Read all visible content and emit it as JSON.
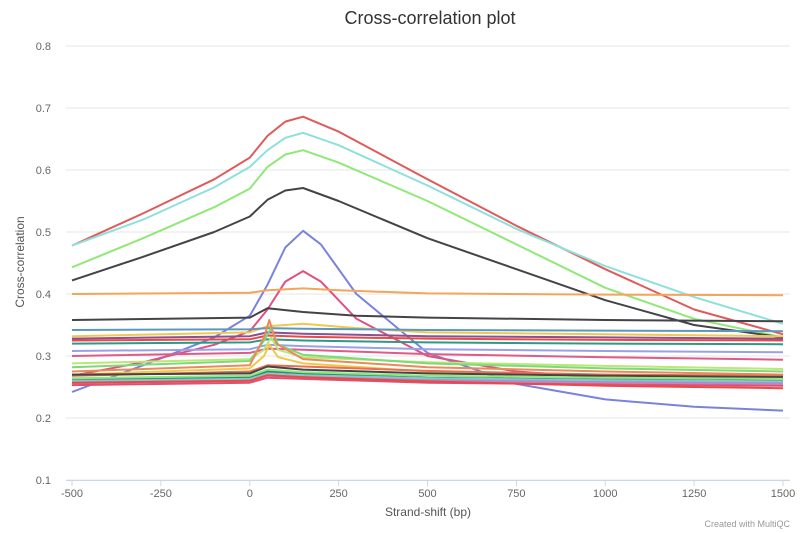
{
  "chart_data": {
    "type": "line",
    "title": "Cross-correlation plot",
    "xlabel": "Strand-shift (bp)",
    "ylabel": "Cross-correlation",
    "xlim": [
      -500,
      1500
    ],
    "ylim": [
      0.1,
      0.8
    ],
    "x_ticks": [
      "-500",
      "-250",
      "0",
      "250",
      "500",
      "750",
      "1000",
      "1250",
      "1500"
    ],
    "y_ticks": [
      "0.1",
      "0.2",
      "0.3",
      "0.4",
      "0.5",
      "0.6",
      "0.7",
      "0.8"
    ],
    "grid": true,
    "legend": "none",
    "series": [
      {
        "color": "#e05a5a",
        "points": [
          [
            -500,
            0.478
          ],
          [
            -300,
            0.53
          ],
          [
            -100,
            0.585
          ],
          [
            0,
            0.62
          ],
          [
            50,
            0.655
          ],
          [
            100,
            0.678
          ],
          [
            150,
            0.686
          ],
          [
            250,
            0.662
          ],
          [
            500,
            0.585
          ],
          [
            750,
            0.51
          ],
          [
            1000,
            0.44
          ],
          [
            1250,
            0.375
          ],
          [
            1500,
            0.335
          ]
        ]
      },
      {
        "color": "#8ee0dc",
        "points": [
          [
            -500,
            0.478
          ],
          [
            -300,
            0.52
          ],
          [
            -100,
            0.572
          ],
          [
            0,
            0.605
          ],
          [
            50,
            0.632
          ],
          [
            100,
            0.652
          ],
          [
            150,
            0.66
          ],
          [
            250,
            0.64
          ],
          [
            500,
            0.575
          ],
          [
            750,
            0.505
          ],
          [
            1000,
            0.445
          ],
          [
            1250,
            0.395
          ],
          [
            1500,
            0.352
          ]
        ]
      },
      {
        "color": "#90e878",
        "points": [
          [
            -500,
            0.443
          ],
          [
            -300,
            0.49
          ],
          [
            -100,
            0.54
          ],
          [
            0,
            0.57
          ],
          [
            50,
            0.605
          ],
          [
            100,
            0.625
          ],
          [
            150,
            0.632
          ],
          [
            250,
            0.612
          ],
          [
            500,
            0.55
          ],
          [
            750,
            0.48
          ],
          [
            1000,
            0.41
          ],
          [
            1250,
            0.36
          ],
          [
            1500,
            0.33
          ]
        ]
      },
      {
        "color": "#434348",
        "points": [
          [
            -500,
            0.422
          ],
          [
            -300,
            0.46
          ],
          [
            -100,
            0.5
          ],
          [
            0,
            0.525
          ],
          [
            50,
            0.552
          ],
          [
            100,
            0.567
          ],
          [
            150,
            0.571
          ],
          [
            250,
            0.55
          ],
          [
            500,
            0.49
          ],
          [
            750,
            0.44
          ],
          [
            1000,
            0.39
          ],
          [
            1250,
            0.35
          ],
          [
            1500,
            0.33
          ]
        ]
      },
      {
        "color": "#7a82e0",
        "points": [
          [
            -500,
            0.242
          ],
          [
            -300,
            0.285
          ],
          [
            -100,
            0.33
          ],
          [
            0,
            0.365
          ],
          [
            50,
            0.415
          ],
          [
            100,
            0.475
          ],
          [
            150,
            0.502
          ],
          [
            200,
            0.48
          ],
          [
            300,
            0.4
          ],
          [
            500,
            0.305
          ],
          [
            750,
            0.255
          ],
          [
            1000,
            0.23
          ],
          [
            1250,
            0.218
          ],
          [
            1500,
            0.212
          ]
        ]
      },
      {
        "color": "#e05080",
        "points": [
          [
            -500,
            0.268
          ],
          [
            -300,
            0.29
          ],
          [
            -100,
            0.318
          ],
          [
            0,
            0.34
          ],
          [
            50,
            0.375
          ],
          [
            100,
            0.42
          ],
          [
            150,
            0.437
          ],
          [
            200,
            0.42
          ],
          [
            300,
            0.36
          ],
          [
            500,
            0.3
          ],
          [
            750,
            0.275
          ],
          [
            1000,
            0.265
          ],
          [
            1250,
            0.26
          ],
          [
            1500,
            0.258
          ]
        ]
      },
      {
        "color": "#f4a55a",
        "points": [
          [
            -500,
            0.4
          ],
          [
            0,
            0.402
          ],
          [
            50,
            0.406
          ],
          [
            150,
            0.409
          ],
          [
            250,
            0.406
          ],
          [
            500,
            0.401
          ],
          [
            1000,
            0.399
          ],
          [
            1500,
            0.398
          ]
        ]
      },
      {
        "color": "#434348",
        "points": [
          [
            -500,
            0.358
          ],
          [
            0,
            0.362
          ],
          [
            50,
            0.377
          ],
          [
            150,
            0.371
          ],
          [
            300,
            0.365
          ],
          [
            500,
            0.362
          ],
          [
            1000,
            0.358
          ],
          [
            1500,
            0.356
          ]
        ]
      },
      {
        "color": "#f0c850",
        "points": [
          [
            -500,
            0.332
          ],
          [
            0,
            0.338
          ],
          [
            50,
            0.348
          ],
          [
            150,
            0.352
          ],
          [
            300,
            0.345
          ],
          [
            500,
            0.338
          ],
          [
            1000,
            0.335
          ],
          [
            1500,
            0.332
          ]
        ]
      },
      {
        "color": "#5a98c0",
        "points": [
          [
            -500,
            0.342
          ],
          [
            0,
            0.343
          ],
          [
            50,
            0.345
          ],
          [
            150,
            0.344
          ],
          [
            500,
            0.342
          ],
          [
            1000,
            0.341
          ],
          [
            1500,
            0.34
          ]
        ]
      },
      {
        "color": "#8a5090",
        "points": [
          [
            -500,
            0.328
          ],
          [
            0,
            0.332
          ],
          [
            50,
            0.338
          ],
          [
            150,
            0.336
          ],
          [
            500,
            0.332
          ],
          [
            1000,
            0.33
          ],
          [
            1500,
            0.328
          ]
        ]
      },
      {
        "color": "#e84a4a",
        "points": [
          [
            -500,
            0.325
          ],
          [
            0,
            0.327
          ],
          [
            50,
            0.333
          ],
          [
            150,
            0.331
          ],
          [
            500,
            0.328
          ],
          [
            1000,
            0.326
          ],
          [
            1500,
            0.325
          ]
        ]
      },
      {
        "color": "#2a9a8a",
        "points": [
          [
            -500,
            0.32
          ],
          [
            0,
            0.322
          ],
          [
            50,
            0.327
          ],
          [
            150,
            0.325
          ],
          [
            500,
            0.322
          ],
          [
            1000,
            0.32
          ],
          [
            1500,
            0.319
          ]
        ]
      },
      {
        "color": "#e05a88",
        "points": [
          [
            -500,
            0.3
          ],
          [
            0,
            0.305
          ],
          [
            50,
            0.312
          ],
          [
            150,
            0.31
          ],
          [
            500,
            0.303
          ],
          [
            1000,
            0.298
          ],
          [
            1500,
            0.294
          ]
        ]
      },
      {
        "color": "#9aa0e8",
        "points": [
          [
            -500,
            0.308
          ],
          [
            0,
            0.311
          ],
          [
            50,
            0.318
          ],
          [
            150,
            0.316
          ],
          [
            500,
            0.311
          ],
          [
            1000,
            0.308
          ],
          [
            1500,
            0.306
          ]
        ]
      },
      {
        "color": "#b8e878",
        "points": [
          [
            -500,
            0.288
          ],
          [
            0,
            0.295
          ],
          [
            40,
            0.31
          ],
          [
            60,
            0.33
          ],
          [
            80,
            0.31
          ],
          [
            150,
            0.298
          ],
          [
            500,
            0.29
          ],
          [
            1000,
            0.284
          ],
          [
            1500,
            0.279
          ]
        ]
      },
      {
        "color": "#80d878",
        "points": [
          [
            -500,
            0.282
          ],
          [
            0,
            0.292
          ],
          [
            40,
            0.325
          ],
          [
            60,
            0.345
          ],
          [
            80,
            0.318
          ],
          [
            150,
            0.302
          ],
          [
            500,
            0.288
          ],
          [
            1000,
            0.28
          ],
          [
            1500,
            0.275
          ]
        ]
      },
      {
        "color": "#e88a5a",
        "points": [
          [
            -500,
            0.275
          ],
          [
            0,
            0.285
          ],
          [
            40,
            0.33
          ],
          [
            55,
            0.358
          ],
          [
            75,
            0.32
          ],
          [
            150,
            0.295
          ],
          [
            500,
            0.282
          ],
          [
            1000,
            0.275
          ],
          [
            1500,
            0.27
          ]
        ]
      },
      {
        "color": "#f0c848",
        "points": [
          [
            -500,
            0.27
          ],
          [
            0,
            0.28
          ],
          [
            40,
            0.3
          ],
          [
            55,
            0.318
          ],
          [
            80,
            0.298
          ],
          [
            150,
            0.288
          ],
          [
            500,
            0.275
          ],
          [
            1000,
            0.27
          ],
          [
            1500,
            0.265
          ]
        ]
      },
      {
        "color": "#e87050",
        "points": [
          [
            -500,
            0.268
          ],
          [
            0,
            0.275
          ],
          [
            50,
            0.285
          ],
          [
            150,
            0.283
          ],
          [
            500,
            0.276
          ],
          [
            1000,
            0.27
          ],
          [
            1500,
            0.268
          ]
        ]
      },
      {
        "color": "#434348",
        "points": [
          [
            -500,
            0.27
          ],
          [
            0,
            0.272
          ],
          [
            50,
            0.283
          ],
          [
            150,
            0.278
          ],
          [
            500,
            0.272
          ],
          [
            1000,
            0.268
          ],
          [
            1500,
            0.266
          ]
        ]
      },
      {
        "color": "#2a8a7a",
        "points": [
          [
            -500,
            0.262
          ],
          [
            0,
            0.266
          ],
          [
            50,
            0.275
          ],
          [
            150,
            0.272
          ],
          [
            500,
            0.265
          ],
          [
            1000,
            0.262
          ],
          [
            1500,
            0.26
          ]
        ]
      },
      {
        "color": "#5ab0d8",
        "points": [
          [
            -500,
            0.258
          ],
          [
            0,
            0.262
          ],
          [
            50,
            0.27
          ],
          [
            150,
            0.268
          ],
          [
            500,
            0.262
          ],
          [
            1000,
            0.259
          ],
          [
            1500,
            0.257
          ]
        ]
      },
      {
        "color": "#c880c8",
        "points": [
          [
            -500,
            0.256
          ],
          [
            0,
            0.26
          ],
          [
            50,
            0.268
          ],
          [
            150,
            0.266
          ],
          [
            500,
            0.26
          ],
          [
            1000,
            0.257
          ],
          [
            1500,
            0.255
          ]
        ]
      },
      {
        "color": "#e05070",
        "points": [
          [
            -500,
            0.253
          ],
          [
            0,
            0.257
          ],
          [
            50,
            0.265
          ],
          [
            150,
            0.263
          ],
          [
            500,
            0.257
          ],
          [
            1000,
            0.254
          ],
          [
            1500,
            0.252
          ]
        ]
      },
      {
        "color": "#90c0c8",
        "points": [
          [
            -500,
            0.26
          ],
          [
            0,
            0.263
          ],
          [
            50,
            0.272
          ],
          [
            150,
            0.269
          ],
          [
            500,
            0.264
          ],
          [
            1000,
            0.261
          ],
          [
            1500,
            0.259
          ]
        ]
      },
      {
        "color": "#90e878",
        "points": [
          [
            -500,
            0.264
          ],
          [
            0,
            0.268
          ],
          [
            50,
            0.278
          ],
          [
            150,
            0.274
          ],
          [
            500,
            0.268
          ],
          [
            1000,
            0.265
          ],
          [
            1500,
            0.263
          ]
        ]
      },
      {
        "color": "#e84a4a",
        "points": [
          [
            -500,
            0.257
          ],
          [
            0,
            0.26
          ],
          [
            50,
            0.269
          ],
          [
            150,
            0.266
          ],
          [
            500,
            0.259
          ],
          [
            1000,
            0.252
          ],
          [
            1500,
            0.248
          ]
        ]
      }
    ]
  },
  "credit": "Created with MultiQC"
}
